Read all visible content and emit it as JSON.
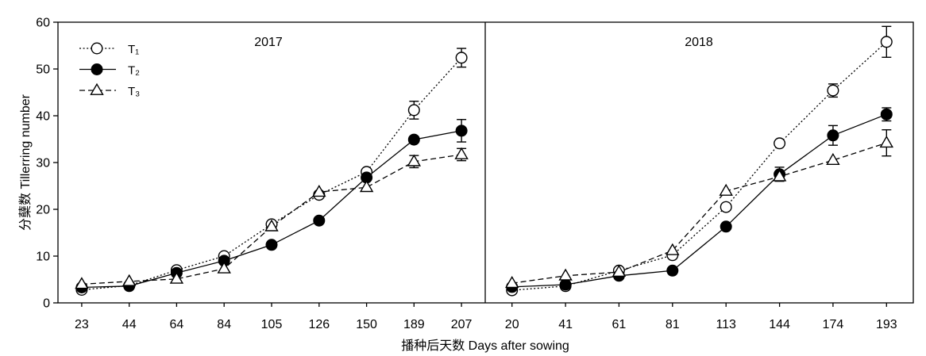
{
  "colors": {
    "ink": "#000000",
    "background": "#ffffff"
  },
  "chart_data": [
    {
      "type": "line",
      "title": "2017",
      "xlabel": "播种后天数 Days after sowing",
      "ylabel": "分蘖数 Tillerring number",
      "categories": [
        "23",
        "44",
        "64",
        "84",
        "105",
        "126",
        "150",
        "189",
        "207"
      ],
      "ylim": [
        0,
        60
      ],
      "yticks": [
        0,
        10,
        20,
        30,
        40,
        50,
        60
      ],
      "grid": false,
      "legend": "top-left",
      "series": [
        {
          "name": "T₁",
          "marker": "circle-open",
          "line_style": "dotted",
          "values": [
            2.8,
            3.7,
            7.0,
            10.0,
            16.8,
            23.1,
            28.0,
            41.2,
            52.4
          ],
          "error": [
            0,
            0,
            0,
            0,
            0,
            0,
            0,
            1.9,
            2.0
          ]
        },
        {
          "name": "T₂",
          "marker": "circle-filled",
          "line_style": "solid",
          "values": [
            3.3,
            3.6,
            6.4,
            9.0,
            12.4,
            17.6,
            26.8,
            34.9,
            36.8
          ],
          "error": [
            0,
            0,
            0,
            0,
            0,
            0,
            0,
            0,
            2.4
          ]
        },
        {
          "name": "T₃",
          "marker": "triangle-open",
          "line_style": "dashed",
          "values": [
            4.0,
            4.6,
            5.1,
            7.3,
            16.3,
            23.7,
            24.7,
            30.2,
            31.7
          ],
          "error": [
            0,
            0,
            0,
            0,
            0,
            0,
            0,
            1.3,
            1.3
          ]
        }
      ]
    },
    {
      "type": "line",
      "title": "2018",
      "categories": [
        "20",
        "41",
        "61",
        "81",
        "113",
        "144",
        "174",
        "193"
      ],
      "ylim": [
        0,
        60
      ],
      "grid": false,
      "series": [
        {
          "name": "T₁",
          "marker": "circle-open",
          "line_style": "dotted",
          "values": [
            2.7,
            3.6,
            6.9,
            10.2,
            20.5,
            34.1,
            45.4,
            55.8
          ],
          "error": [
            0,
            0,
            0,
            0,
            0,
            0,
            1.4,
            3.3
          ]
        },
        {
          "name": "T₂",
          "marker": "circle-filled",
          "line_style": "solid",
          "values": [
            3.4,
            3.9,
            5.8,
            6.9,
            16.3,
            27.5,
            35.8,
            40.3
          ],
          "error": [
            0,
            0,
            0,
            0,
            0,
            1.5,
            2.1,
            1.4
          ]
        },
        {
          "name": "T₃",
          "marker": "triangle-open",
          "line_style": "dashed",
          "values": [
            4.2,
            5.8,
            6.6,
            11.2,
            23.9,
            27.0,
            30.5,
            34.2
          ],
          "error": [
            0,
            0,
            0,
            0,
            0,
            0.8,
            0,
            2.8
          ]
        }
      ]
    }
  ]
}
